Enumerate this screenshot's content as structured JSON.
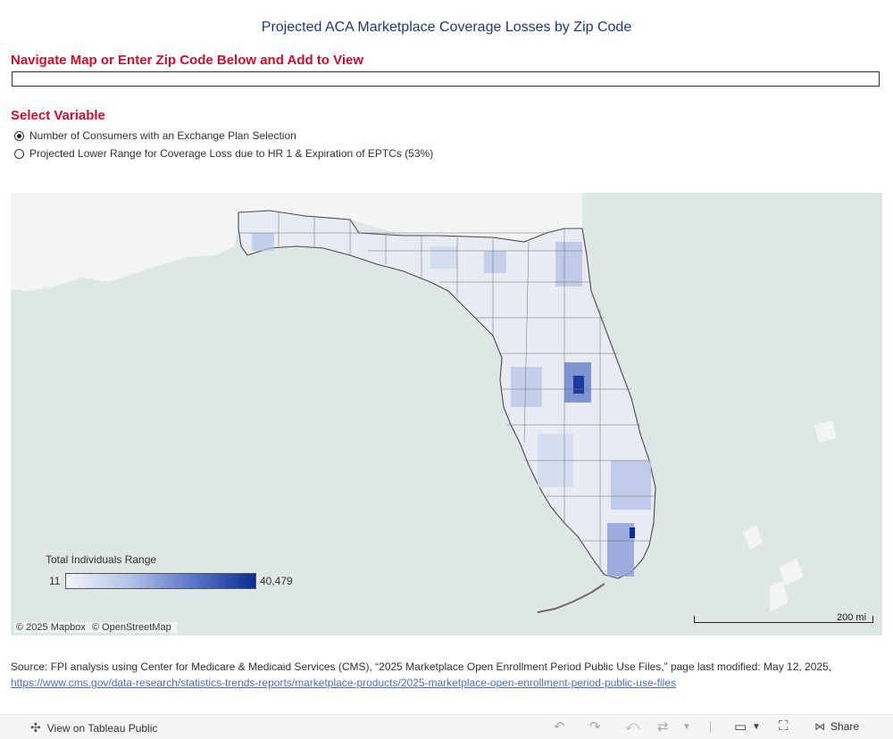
{
  "title": "Projected ACA Marketplace Coverage Losses by Zip Code",
  "nav_label": "Navigate Map or Enter Zip Code Below and Add to View",
  "zip_input": {
    "value": "",
    "placeholder": ""
  },
  "variable": {
    "label": "Select Variable",
    "options": [
      {
        "label": "Number of Consumers with an Exchange Plan Selection",
        "selected": true
      },
      {
        "label": "Projected Lower Range for Coverage Loss due to HR 1 & Expiration of EPTCs (53%)",
        "selected": false
      }
    ]
  },
  "legend": {
    "title": "Total Individuals Range",
    "min": "11",
    "max": "40,479",
    "colors": [
      "#f3f5fb",
      "#b5c3e6",
      "#5c77c9",
      "#0a2d93"
    ]
  },
  "attribution": {
    "mapbox": "© 2025 Mapbox",
    "osm": "© OpenStreetMap"
  },
  "scale": "200 mi",
  "colors": {
    "title": "#1f3a7a",
    "accent_red": "#c8102e",
    "water": "#dfe6e6",
    "land": "#f5f6f6",
    "link": "#4a6cc0"
  },
  "source": {
    "text": "Source: FPI analysis using Center for Medicare & Medicaid Services (CMS), “2025 Marketplace Open Enrollment Period Public Use Files,” page last modified: May 12, 2025,",
    "link": "https://www.cms.gov/data-research/statistics-trends-reports/marketplace-products/2025-marketplace-open-enrollment-period-public-use-files"
  },
  "footer": {
    "view_label": "View on Tableau Public",
    "share_label": "Share",
    "icons": [
      "tableau-icon",
      "undo-icon",
      "redo-icon",
      "revert-icon",
      "refresh-icon",
      "pause-icon",
      "download-icon",
      "fullscreen-icon",
      "share-icon"
    ]
  }
}
